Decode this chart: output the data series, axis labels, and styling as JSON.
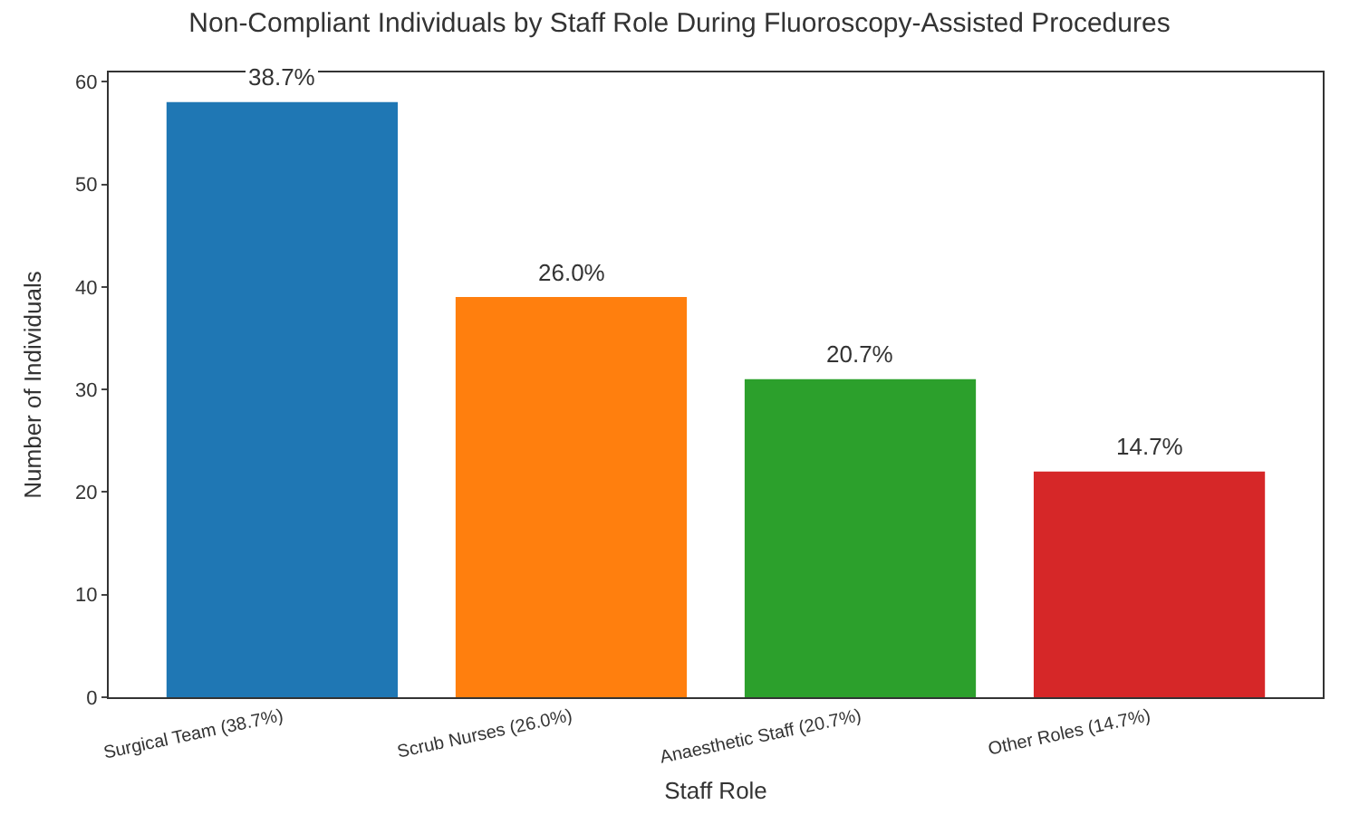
{
  "chart_data": {
    "type": "bar",
    "title": "Non-Compliant Individuals by Staff Role During Fluoroscopy-Assisted Procedures",
    "xlabel": "Staff Role",
    "ylabel": "Number of Individuals",
    "categories": [
      "Surgical Team (38.7%)",
      "Scrub Nurses (26.0%)",
      "Anaesthetic Staff (20.7%)",
      "Other Roles (14.7%)"
    ],
    "values": [
      58,
      39,
      31,
      22
    ],
    "colors": [
      "#1f77b4",
      "#ff7f0e",
      "#2ca02c",
      "#d62728"
    ],
    "annotations": [
      {
        "text": "38.7%",
        "x": "Surgical Team (38.7%)",
        "y": 58
      },
      {
        "text": "26.0%",
        "x": "Scrub Nurses (26.0%)",
        "y": 39
      },
      {
        "text": "20.7%",
        "x": "Anaesthetic Staff (20.7%)",
        "y": 31
      },
      {
        "text": "14.7%",
        "x": "Other Roles (14.7%)",
        "y": 22
      }
    ],
    "ylim": [
      0,
      60.9
    ],
    "yticks": [
      0,
      10,
      20,
      30,
      40,
      50,
      60
    ]
  }
}
